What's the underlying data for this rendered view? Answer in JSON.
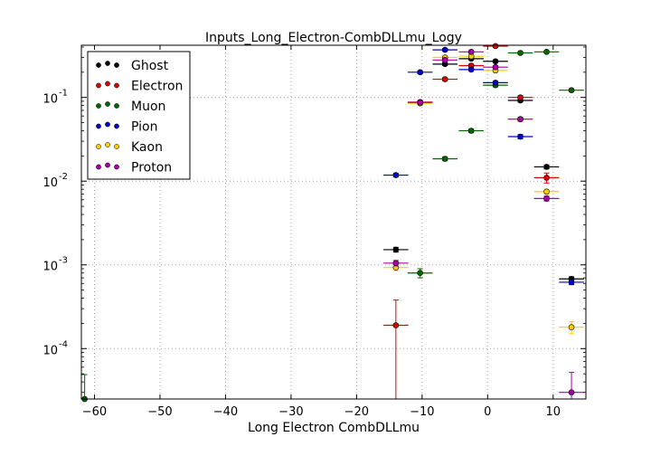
{
  "chart_data": {
    "type": "scatter",
    "title": "Inputs_Long_Electron-CombDLLmu_Logy",
    "xlabel": "Long Electron CombDLLmu",
    "ylabel": "",
    "xlim": [
      -62,
      15
    ],
    "ylim": [
      2.5e-05,
      0.42
    ],
    "yscale": "log",
    "grid": true,
    "legend_position": "upper-left",
    "x_ticks": [
      -60,
      -50,
      -40,
      -30,
      -20,
      -10,
      0,
      10
    ],
    "x_tick_labels": [
      "−60",
      "−50",
      "−40",
      "−30",
      "−20",
      "−10",
      "0",
      "10"
    ],
    "y_tick_labels": [
      {
        "base": "10",
        "exp": "-1",
        "value": 0.1
      },
      {
        "base": "10",
        "exp": "-2",
        "value": 0.01
      },
      {
        "base": "10",
        "exp": "-3",
        "value": 0.001
      },
      {
        "base": "10",
        "exp": "-4",
        "value": 0.0001
      }
    ],
    "series": [
      {
        "name": "Ghost",
        "color": "#000000",
        "points": [
          {
            "x": -14,
            "y": 0.00152,
            "xerr": 1.9,
            "yerr": 0.0001
          },
          {
            "x": -6.5,
            "y": 0.25,
            "xerr": 1.9,
            "yerr": 0.01
          },
          {
            "x": -2.5,
            "y": 0.29,
            "xerr": 1.9,
            "yerr": 0.01
          },
          {
            "x": 1.2,
            "y": 0.27,
            "xerr": 1.9,
            "yerr": 0.01
          },
          {
            "x": 5,
            "y": 0.092,
            "xerr": 1.9,
            "yerr": 0.004
          },
          {
            "x": 9,
            "y": 0.0148,
            "xerr": 1.9,
            "yerr": 0.0008
          },
          {
            "x": 12.8,
            "y": 0.00068,
            "xerr": 1.9,
            "yerr": 4e-05
          }
        ]
      },
      {
        "name": "Electron",
        "color": "#dd0000",
        "points": [
          {
            "x": -14,
            "y": 0.00019,
            "xerr": 1.9,
            "yerr": 0.00019
          },
          {
            "x": -10.3,
            "y": 0.088,
            "xerr": 1.9,
            "yerr": 0.004
          },
          {
            "x": -6.5,
            "y": 0.165,
            "xerr": 1.9,
            "yerr": 0.007
          },
          {
            "x": -2.5,
            "y": 0.24,
            "xerr": 1.9,
            "yerr": 0.01
          },
          {
            "x": 1.2,
            "y": 0.41,
            "xerr": 1.9,
            "yerr": 0.015
          },
          {
            "x": 5,
            "y": 0.1,
            "xerr": 1.9,
            "yerr": 0.005
          },
          {
            "x": 9,
            "y": 0.011,
            "xerr": 1.9,
            "yerr": 0.0015
          }
        ]
      },
      {
        "name": "Muon",
        "color": "#006600",
        "points": [
          {
            "x": -61.5,
            "y": 2.5e-05,
            "xerr": 0,
            "yerr": 2.4e-05
          },
          {
            "x": -10.3,
            "y": 0.0008,
            "xerr": 1.9,
            "yerr": 0.0001
          },
          {
            "x": -6.5,
            "y": 0.0185,
            "xerr": 1.9,
            "yerr": 0.001
          },
          {
            "x": -2.5,
            "y": 0.04,
            "xerr": 1.9,
            "yerr": 0.002
          },
          {
            "x": 1.2,
            "y": 0.14,
            "xerr": 1.9,
            "yerr": 0.006
          },
          {
            "x": 5,
            "y": 0.34,
            "xerr": 1.9,
            "yerr": 0.012
          },
          {
            "x": 9,
            "y": 0.35,
            "xerr": 1.9,
            "yerr": 0.012
          },
          {
            "x": 12.8,
            "y": 0.122,
            "xerr": 1.9,
            "yerr": 0.005
          }
        ]
      },
      {
        "name": "Pion",
        "color": "#0000cc",
        "points": [
          {
            "x": -14,
            "y": 0.0118,
            "xerr": 1.9,
            "yerr": 0.0006
          },
          {
            "x": -10.3,
            "y": 0.2,
            "xerr": 1.9,
            "yerr": 0.008
          },
          {
            "x": -6.5,
            "y": 0.37,
            "xerr": 1.9,
            "yerr": 0.015
          },
          {
            "x": -2.5,
            "y": 0.215,
            "xerr": 1.9,
            "yerr": 0.009
          },
          {
            "x": 1.2,
            "y": 0.15,
            "xerr": 1.9,
            "yerr": 0.006
          },
          {
            "x": 5,
            "y": 0.034,
            "xerr": 1.9,
            "yerr": 0.002
          },
          {
            "x": 9,
            "y": 0.0062,
            "xerr": 1.9,
            "yerr": 0.0004
          },
          {
            "x": 12.8,
            "y": 0.00062,
            "xerr": 1.9,
            "yerr": 4e-05
          }
        ]
      },
      {
        "name": "Kaon",
        "color": "#ffcc00",
        "points": [
          {
            "x": -14,
            "y": 0.00093,
            "xerr": 1.9,
            "yerr": 8e-05
          },
          {
            "x": -10.3,
            "y": 0.085,
            "xerr": 1.9,
            "yerr": 0.004
          },
          {
            "x": -6.5,
            "y": 0.3,
            "xerr": 1.9,
            "yerr": 0.012
          },
          {
            "x": -2.5,
            "y": 0.31,
            "xerr": 1.9,
            "yerr": 0.012
          },
          {
            "x": 1.2,
            "y": 0.21,
            "xerr": 1.9,
            "yerr": 0.009
          },
          {
            "x": 5,
            "y": 0.055,
            "xerr": 1.9,
            "yerr": 0.003
          },
          {
            "x": 9,
            "y": 0.0075,
            "xerr": 1.9,
            "yerr": 0.0005
          },
          {
            "x": 12.8,
            "y": 0.00018,
            "xerr": 1.9,
            "yerr": 3e-05
          }
        ]
      },
      {
        "name": "Proton",
        "color": "#aa00aa",
        "points": [
          {
            "x": -14,
            "y": 0.00105,
            "xerr": 1.9,
            "yerr": 8e-05
          },
          {
            "x": -10.3,
            "y": 0.087,
            "xerr": 1.9,
            "yerr": 0.004
          },
          {
            "x": -6.5,
            "y": 0.28,
            "xerr": 1.9,
            "yerr": 0.012
          },
          {
            "x": -2.5,
            "y": 0.35,
            "xerr": 1.9,
            "yerr": 0.014
          },
          {
            "x": 1.2,
            "y": 0.23,
            "xerr": 1.9,
            "yerr": 0.009
          },
          {
            "x": 5,
            "y": 0.055,
            "xerr": 1.9,
            "yerr": 0.003
          },
          {
            "x": 9,
            "y": 0.0062,
            "xerr": 1.9,
            "yerr": 0.0004
          },
          {
            "x": 12.8,
            "y": 3e-05,
            "xerr": 1.9,
            "yerr": 2.2e-05
          }
        ]
      }
    ]
  }
}
